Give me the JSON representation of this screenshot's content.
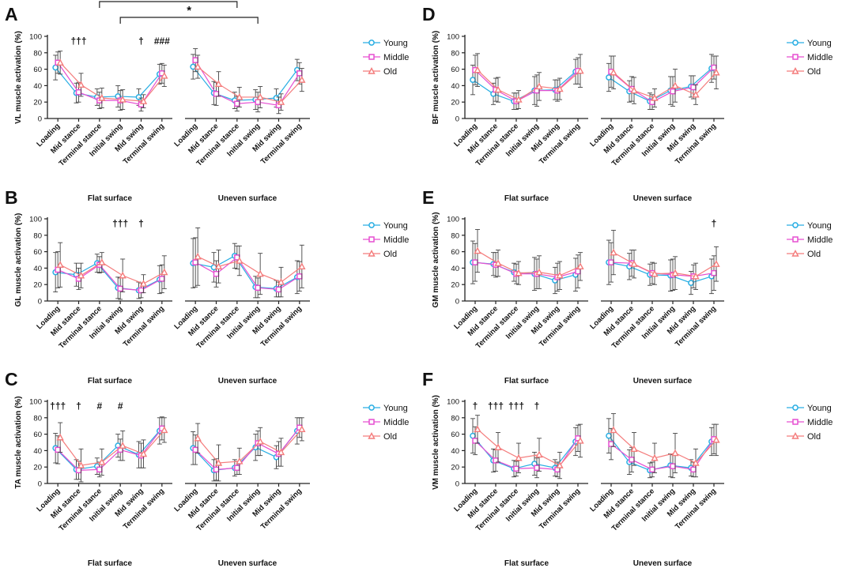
{
  "colors": {
    "Young": "#29aee3",
    "Middle": "#e64fd1",
    "Old": "#f47c7c"
  },
  "legend": [
    "Young",
    "Middle",
    "Old"
  ],
  "chart_data": [
    {
      "letter": "A",
      "type": "line",
      "ylabel": "VL muscle activation (%)",
      "ylim": [
        0,
        100
      ],
      "yticks": [
        0,
        20,
        40,
        60,
        80,
        100
      ],
      "categories": [
        "Loading",
        "Mid stance",
        "Terminal stance",
        "Initial swing",
        "Mid swing",
        "Terminal swing"
      ],
      "groups": [
        "Flat surface",
        "Uneven surface"
      ],
      "data": {
        "Flat surface": {
          "Young": {
            "mean": [
              62,
              31,
              26,
              27,
              26,
              54
            ],
            "sd": [
              15,
              12,
              10,
              13,
              10,
              12
            ]
          },
          "Middle": {
            "mean": [
              68,
              32,
              22,
              22,
              17,
              55
            ],
            "sd": [
              13,
              12,
              10,
              12,
              8,
              12
            ]
          },
          "Old": {
            "mean": [
              68,
              41,
              25,
              23,
              21,
              52
            ],
            "sd": [
              14,
              14,
              12,
              12,
              8,
              13
            ]
          }
        },
        "Uneven surface": {
          "Young": {
            "mean": [
              63,
              31,
              22,
              23,
              25,
              59
            ],
            "sd": [
              15,
              14,
              10,
              12,
              11,
              13
            ]
          },
          "Middle": {
            "mean": [
              71,
              30,
              18,
              20,
              16,
              55
            ],
            "sd": [
              14,
              14,
              9,
              12,
              10,
              13
            ]
          },
          "Old": {
            "mean": [
              63,
              42,
              26,
              26,
              20,
              47
            ],
            "sd": [
              14,
              15,
              12,
              13,
              10,
              14
            ]
          }
        }
      },
      "annotations": [
        {
          "text": "†††",
          "group": "Flat surface",
          "cat": 1
        },
        {
          "text": "†",
          "group": "Flat surface",
          "cat": 4
        },
        {
          "text": "###",
          "group": "Flat surface",
          "cat": 5
        }
      ],
      "brackets": [
        {
          "label": "**",
          "from": {
            "group": "Flat surface",
            "cat": 2
          },
          "to": {
            "group": "Uneven surface",
            "cat": 2
          },
          "level": 2
        },
        {
          "label": "*",
          "from": {
            "group": "Flat surface",
            "cat": 3
          },
          "to": {
            "group": "Uneven surface",
            "cat": 3
          },
          "level": 1
        }
      ]
    },
    {
      "letter": "B",
      "type": "line",
      "ylabel": "GL muscle activation (%)",
      "ylim": [
        0,
        100
      ],
      "yticks": [
        0,
        20,
        40,
        60,
        80,
        100
      ],
      "categories": [
        "Loading",
        "Mid stance",
        "Terminal stance",
        "Initial swing",
        "Mid swing",
        "Terminal swing"
      ],
      "groups": [
        "Flat surface",
        "Uneven surface"
      ],
      "data": {
        "Flat surface": {
          "Young": {
            "mean": [
              35,
              32,
              46,
              16,
              13,
              26
            ],
            "sd": [
              24,
              14,
              11,
              13,
              10,
              17
            ]
          },
          "Middle": {
            "mean": [
              38,
              27,
              44,
              15,
              13,
              27
            ],
            "sd": [
              22,
              13,
              10,
              13,
              9,
              17
            ]
          },
          "Old": {
            "mean": [
              44,
              31,
              47,
              31,
              21,
              35
            ],
            "sd": [
              27,
              15,
              12,
              20,
              11,
              20
            ]
          }
        },
        "Uneven surface": {
          "Young": {
            "mean": [
              46,
              41,
              55,
              17,
              15,
              29
            ],
            "sd": [
              30,
              18,
              15,
              13,
              10,
              20
            ]
          },
          "Middle": {
            "mean": [
              47,
              33,
              53,
              16,
              14,
              30
            ],
            "sd": [
              30,
              16,
              14,
              12,
              9,
              18
            ]
          },
          "Old": {
            "mean": [
              54,
              42,
              49,
              33,
              23,
              42
            ],
            "sd": [
              35,
              20,
              18,
              25,
              18,
              26
            ]
          }
        }
      },
      "annotations": [
        {
          "text": "†††",
          "group": "Flat surface",
          "cat": 3
        },
        {
          "text": "†",
          "group": "Flat surface",
          "cat": 4
        }
      ],
      "brackets": []
    },
    {
      "letter": "C",
      "type": "line",
      "ylabel": "TA muscle activation (%)",
      "ylim": [
        0,
        100
      ],
      "yticks": [
        0,
        20,
        40,
        60,
        80,
        100
      ],
      "categories": [
        "Loading",
        "Mid stance",
        "Terminal stance",
        "Initial swing",
        "Mid swing",
        "Terminal swing"
      ],
      "groups": [
        "Flat surface",
        "Uneven surface"
      ],
      "data": {
        "Flat surface": {
          "Young": {
            "mean": [
              43,
              17,
              21,
              46,
              35,
              64
            ],
            "sd": [
              18,
              12,
              10,
              14,
              16,
              16
            ]
          },
          "Middle": {
            "mean": [
              41,
              16,
              17,
              41,
              34,
              67
            ],
            "sd": [
              17,
              11,
              9,
              13,
              15,
              14
            ]
          },
          "Old": {
            "mean": [
              56,
              22,
              26,
              46,
              36,
              65
            ],
            "sd": [
              18,
              20,
              16,
              18,
              17,
              15
            ]
          }
        },
        "Uneven surface": {
          "Young": {
            "mean": [
              43,
              16,
              19,
              44,
              32,
              64
            ],
            "sd": [
              20,
              13,
              10,
              16,
              14,
              16
            ]
          },
          "Middle": {
            "mean": [
              41,
              17,
              19,
              49,
              36,
              68
            ],
            "sd": [
              18,
              13,
              8,
              15,
              15,
              12
            ]
          },
          "Old": {
            "mean": [
              55,
              25,
              27,
              51,
              38,
              66
            ],
            "sd": [
              18,
              22,
              16,
              17,
              17,
              14
            ]
          }
        }
      },
      "annotations": [
        {
          "text": "†††",
          "group": "Flat surface",
          "cat": 0
        },
        {
          "text": "†",
          "group": "Flat surface",
          "cat": 1
        },
        {
          "text": "#",
          "group": "Flat surface",
          "cat": 2
        },
        {
          "text": "#",
          "group": "Flat surface",
          "cat": 3
        }
      ],
      "brackets": []
    },
    {
      "letter": "D",
      "type": "line",
      "ylabel": "BF muscle activation (%)",
      "ylim": [
        0,
        100
      ],
      "yticks": [
        0,
        20,
        40,
        60,
        80,
        100
      ],
      "categories": [
        "Loading",
        "Mid stance",
        "Terminal stance",
        "Initial swing",
        "Mid swing",
        "Terminal swing"
      ],
      "groups": [
        "Flat surface",
        "Uneven surface"
      ],
      "data": {
        "Flat surface": {
          "Young": {
            "mean": [
              47,
              30,
              21,
              34,
              35,
              57
            ],
            "sd": [
              18,
              13,
              10,
              17,
              12,
              15
            ]
          },
          "Middle": {
            "mean": [
              59,
              35,
              21,
              34,
              34,
              58
            ],
            "sd": [
              18,
              14,
              10,
              19,
              13,
              16
            ]
          },
          "Old": {
            "mean": [
              59,
              35,
              23,
              39,
              36,
              58
            ],
            "sd": [
              20,
              15,
              11,
              17,
              13,
              20
            ]
          }
        },
        "Uneven surface": {
          "Young": {
            "mean": [
              50,
              33,
              21,
              34,
              39,
              61
            ],
            "sd": [
              17,
              13,
              10,
              17,
              13,
              17
            ]
          },
          "Middle": {
            "mean": [
              57,
              36,
              20,
              33,
              38,
              62
            ],
            "sd": [
              19,
              15,
              9,
              18,
              14,
              14
            ]
          },
          "Old": {
            "mean": [
              56,
              34,
              25,
              40,
              29,
              56
            ],
            "sd": [
              20,
              16,
              11,
              20,
              12,
              20
            ]
          }
        }
      },
      "annotations": [],
      "brackets": []
    },
    {
      "letter": "E",
      "type": "line",
      "ylabel": "GM muscle activation (%)",
      "ylim": [
        0,
        100
      ],
      "yticks": [
        0,
        20,
        40,
        60,
        80,
        100
      ],
      "categories": [
        "Loading",
        "Mid stance",
        "Terminal stance",
        "Initial swing",
        "Mid swing",
        "Terminal swing"
      ],
      "groups": [
        "Flat surface",
        "Uneven surface"
      ],
      "data": {
        "Flat surface": {
          "Young": {
            "mean": [
              47,
              45,
              35,
              33,
              25,
              32
            ],
            "sd": [
              26,
              14,
              11,
              20,
              16,
              20
            ]
          },
          "Middle": {
            "mean": [
              47,
              44,
              33,
              33,
              29,
              36
            ],
            "sd": [
              23,
              15,
              12,
              18,
              17,
              20
            ]
          },
          "Old": {
            "mean": [
              61,
              46,
              34,
              35,
              31,
              42
            ],
            "sd": [
              26,
              16,
              14,
              20,
              17,
              17
            ]
          }
        },
        "Uneven surface": {
          "Young": {
            "mean": [
              47,
              42,
              32,
              31,
              22,
              30
            ],
            "sd": [
              27,
              16,
              13,
              19,
              14,
              21
            ]
          },
          "Middle": {
            "mean": [
              47,
              46,
              34,
              32,
              30,
              34
            ],
            "sd": [
              24,
              16,
              13,
              19,
              14,
              21
            ]
          },
          "Old": {
            "mean": [
              59,
              45,
              33,
              34,
              30,
              45
            ],
            "sd": [
              27,
              17,
              13,
              20,
              16,
              21
            ]
          }
        }
      },
      "annotations": [
        {
          "text": "†",
          "group": "Uneven surface",
          "cat": 5
        }
      ],
      "brackets": []
    },
    {
      "letter": "F",
      "type": "line",
      "ylabel": "VM muscle activation (%)",
      "ylim": [
        0,
        100
      ],
      "yticks": [
        0,
        20,
        40,
        60,
        80,
        100
      ],
      "categories": [
        "Loading",
        "Mid stance",
        "Terminal stance",
        "Initial swing",
        "Mid swing",
        "Terminal swing"
      ],
      "groups": [
        "Flat surface",
        "Uneven surface"
      ],
      "data": {
        "Flat surface": {
          "Young": {
            "mean": [
              58,
              28,
              18,
              24,
              19,
              51
            ],
            "sd": [
              21,
              14,
              10,
              14,
              10,
              17
            ]
          },
          "Middle": {
            "mean": [
              52,
              28,
              18,
              19,
              17,
              55
            ],
            "sd": [
              17,
              13,
              9,
              12,
              9,
              16
            ]
          },
          "Old": {
            "mean": [
              66,
              44,
              31,
              35,
              22,
              52
            ],
            "sd": [
              17,
              18,
              18,
              20,
              16,
              20
            ]
          }
        },
        "Uneven surface": {
          "Young": {
            "mean": [
              58,
              26,
              16,
              22,
              19,
              51
            ],
            "sd": [
              21,
              15,
              9,
              14,
              10,
              17
            ]
          },
          "Middle": {
            "mean": [
              48,
              29,
              17,
              21,
              17,
              54
            ],
            "sd": [
              19,
              15,
              9,
              14,
              9,
              18
            ]
          },
          "Old": {
            "mean": [
              65,
              42,
              31,
              37,
              25,
              53
            ],
            "sd": [
              20,
              20,
              18,
              24,
              17,
              19
            ]
          }
        }
      },
      "annotations": [
        {
          "text": "†",
          "group": "Flat surface",
          "cat": 0
        },
        {
          "text": "†††",
          "group": "Flat surface",
          "cat": 1
        },
        {
          "text": "†††",
          "group": "Flat surface",
          "cat": 2
        },
        {
          "text": "†",
          "group": "Flat surface",
          "cat": 3
        }
      ],
      "brackets": []
    }
  ]
}
